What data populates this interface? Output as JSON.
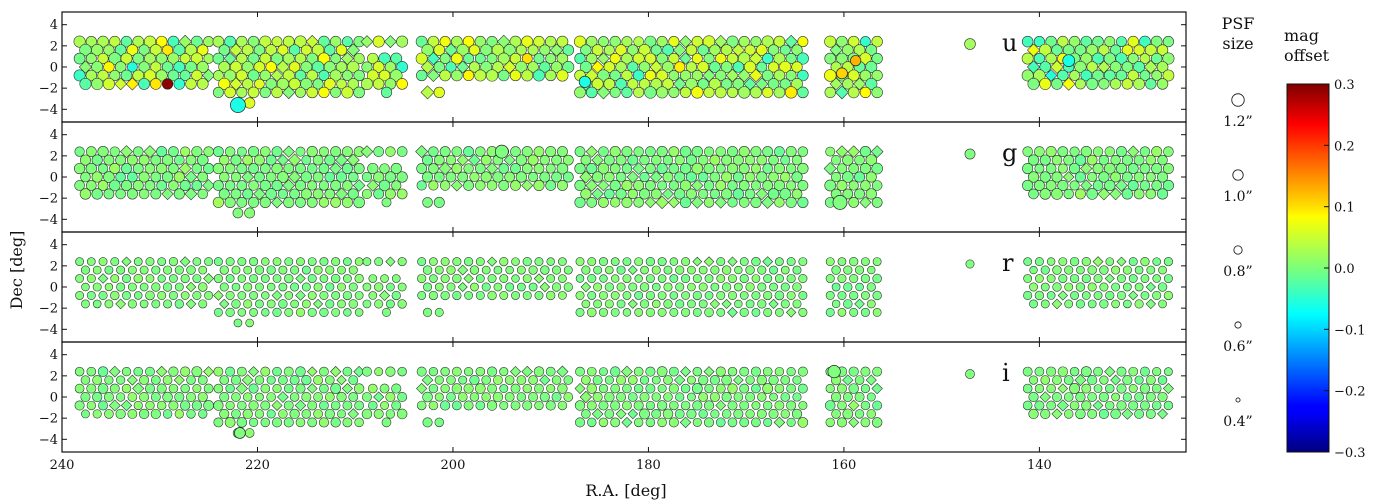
{
  "chart_data": {
    "type": "scatter",
    "xlabel": "R.A. [deg]",
    "ylabel": "Dec [deg]",
    "xlim": [
      240,
      125
    ],
    "ylim": [
      -5.2,
      5.2
    ],
    "xticks": [
      240,
      220,
      200,
      180,
      160,
      140
    ],
    "yticks": [
      -4,
      -2,
      0,
      2,
      4
    ],
    "grid": false,
    "colorbar": {
      "title_lines": [
        "mag",
        "offset"
      ],
      "range": [
        -0.3,
        0.3
      ],
      "ticks": [
        0.3,
        0.2,
        0.1,
        0.0,
        -0.1,
        -0.2,
        -0.3
      ],
      "tick_labels": [
        "0.3",
        "0.2",
        "0.1",
        "0.0",
        "−0.1",
        "−0.2",
        "−0.3"
      ],
      "colormap": "jet"
    },
    "size_legend": {
      "title_lines": [
        "PSF",
        "size"
      ],
      "values": [
        1.2,
        1.0,
        0.8,
        0.6,
        0.4
      ],
      "labels": [
        "1.2”",
        "1.0”",
        "0.8”",
        "0.6”",
        "0.4”"
      ]
    },
    "panels": [
      {
        "band": "u",
        "psf_mean": 1.05,
        "psf_spread": 0.12,
        "offset_mean": 0.02,
        "offset_spread": 0.05,
        "highlights": [
          {
            "ra": 229.2,
            "dec": -1.6,
            "psf": 1.0,
            "offset": 0.29
          },
          {
            "ra": 222.0,
            "dec": -3.6,
            "psf": 1.45,
            "offset": -0.06
          },
          {
            "ra": 158.8,
            "dec": 0.6,
            "psf": 1.0,
            "offset": 0.12
          },
          {
            "ra": 160.2,
            "dec": -0.6,
            "psf": 1.05,
            "offset": 0.1
          },
          {
            "ra": 186.5,
            "dec": -1.4,
            "psf": 1.1,
            "offset": -0.06
          },
          {
            "ra": 137.0,
            "dec": 0.6,
            "psf": 1.15,
            "offset": -0.06
          }
        ]
      },
      {
        "band": "g",
        "psf_mean": 0.98,
        "psf_spread": 0.1,
        "offset_mean": 0.0,
        "offset_spread": 0.012,
        "highlights": [
          {
            "ra": 160.4,
            "dec": -2.4,
            "psf": 1.35,
            "offset": 0.0
          },
          {
            "ra": 195.0,
            "dec": 2.4,
            "psf": 1.25,
            "offset": 0.0
          }
        ]
      },
      {
        "band": "r",
        "psf_mean": 0.8,
        "psf_spread": 0.07,
        "offset_mean": 0.0,
        "offset_spread": 0.008,
        "highlights": []
      },
      {
        "band": "i",
        "psf_mean": 0.88,
        "psf_spread": 0.12,
        "offset_mean": 0.0,
        "offset_spread": 0.01,
        "highlights": [
          {
            "ra": 161.0,
            "dec": 2.4,
            "psf": 1.2,
            "offset": 0.0
          },
          {
            "ra": 221.8,
            "dec": -3.4,
            "psf": 1.05,
            "offset": 0.0
          }
        ]
      }
    ],
    "footprint": {
      "full_dec_rows": [
        2.4,
        1.6,
        0.8,
        0.0,
        -0.8,
        -1.6
      ],
      "regions": [
        {
          "ra_from": 238.2,
          "ra_to": 224.5,
          "dec_rows": [
            2.4,
            1.6,
            0.8,
            0.0,
            -0.8,
            -1.6
          ]
        },
        {
          "ra_from": 224.0,
          "ra_to": 209.6,
          "dec_rows": [
            2.4,
            1.6,
            0.8,
            0.0,
            -0.8,
            -1.6,
            -2.4
          ]
        },
        {
          "ra_from": 208.8,
          "ra_to": 205.2,
          "dec_rows": [
            2.4,
            0.8,
            0.0,
            -0.8,
            -1.6
          ]
        },
        {
          "ra_from": 203.2,
          "ra_to": 188.2,
          "dec_rows": [
            2.4,
            1.6,
            0.8,
            0.0,
            -0.8
          ]
        },
        {
          "ra_from": 187.0,
          "ra_to": 163.8,
          "dec_rows": [
            2.4,
            1.6,
            0.8,
            0.0,
            -0.8,
            -1.6,
            -2.4
          ]
        },
        {
          "ra_from": 161.4,
          "ra_to": 156.4,
          "dec_rows": [
            2.4,
            1.6,
            0.8,
            0.0,
            -0.8,
            -1.6,
            -2.4
          ]
        },
        {
          "ra_from": 141.2,
          "ra_to": 126.4,
          "dec_rows": [
            2.4,
            1.6,
            0.8,
            0.0,
            -0.8,
            -1.6
          ]
        }
      ],
      "extras": [
        {
          "ra": 222.0,
          "dec": -3.4
        },
        {
          "ra": 220.8,
          "dec": -3.4
        },
        {
          "ra": 206.8,
          "dec": -2.4
        },
        {
          "ra": 202.6,
          "dec": -2.4
        },
        {
          "ra": 201.4,
          "dec": -2.4
        }
      ]
    }
  }
}
